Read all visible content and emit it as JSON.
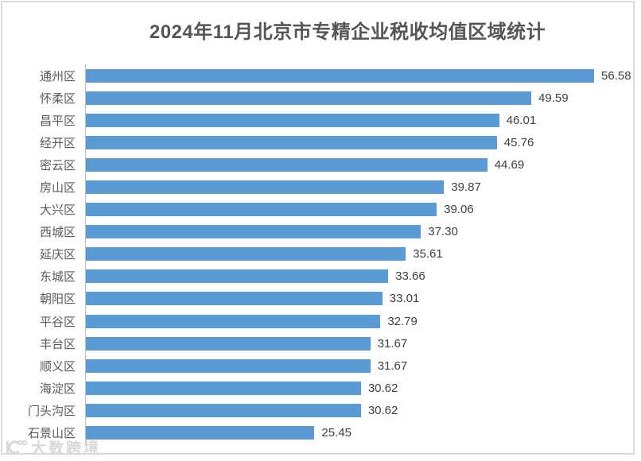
{
  "title": "2024年11月北京市专精企业税收均值区域统计",
  "watermark": {
    "text": "大数跨境",
    "logo": "k100-logo"
  },
  "colors": {
    "bar": "#5B9BD5",
    "axis_line": "#BFBFBF",
    "panel_border": "#DADADA",
    "title_text": "#555555",
    "category_text": "#595959",
    "value_text": "#404040",
    "watermark_text": "#D8D8D8"
  },
  "chart_data": {
    "type": "bar",
    "orientation": "horizontal",
    "title": "2024年11月北京市专精企业税收均值区域统计",
    "categories": [
      "通州区",
      "怀柔区",
      "昌平区",
      "经开区",
      "密云区",
      "房山区",
      "大兴区",
      "西城区",
      "延庆区",
      "东城区",
      "朝阳区",
      "平谷区",
      "丰台区",
      "顺义区",
      "海淀区",
      "门头沟区",
      "石景山区"
    ],
    "values": [
      56.58,
      49.59,
      46.01,
      45.76,
      44.69,
      39.87,
      39.06,
      37.3,
      35.61,
      33.66,
      33.01,
      32.79,
      31.67,
      31.67,
      30.62,
      30.62,
      25.45
    ],
    "value_labels": [
      "56.58",
      "49.59",
      "46.01",
      "45.76",
      "44.69",
      "39.87",
      "39.06",
      "37.30",
      "35.61",
      "33.66",
      "33.01",
      "32.79",
      "31.67",
      "31.67",
      "30.62",
      "30.62",
      "25.45"
    ],
    "xlim": [
      0,
      60
    ],
    "grid": false,
    "legend": false,
    "bar_color": "#5B9BD5"
  }
}
